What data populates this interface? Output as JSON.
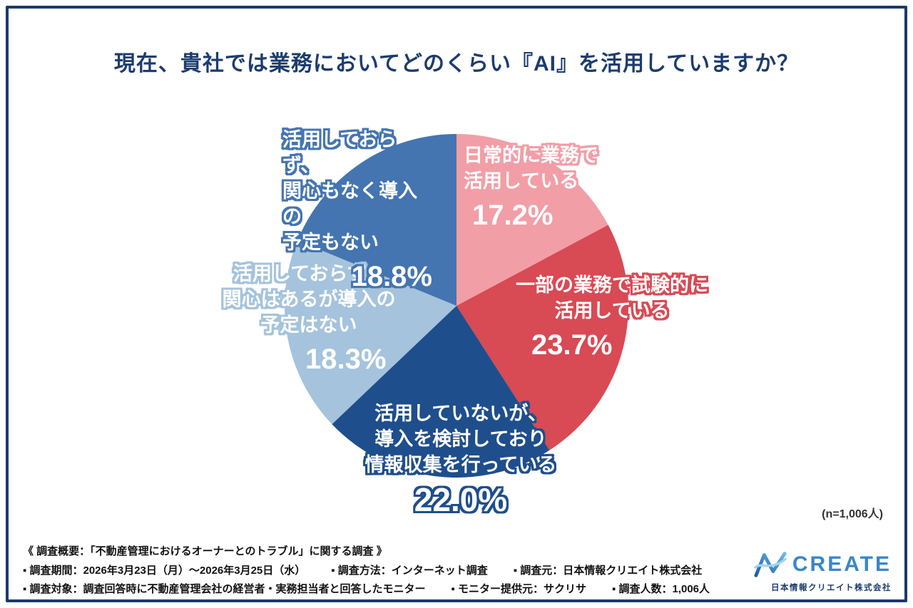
{
  "page": {
    "title": "現在、貴社では業務においてどのくらい『AI』を活用していますか？",
    "n_note": "(n=1,006人)"
  },
  "chart_data": {
    "type": "pie",
    "title": "現在、貴社では業務においてどのくらい『AI』を活用していますか？",
    "start_angle_deg": -90,
    "direction": "clockwise",
    "total_respondents": "1,006人",
    "slices": [
      {
        "name": "日常的に業務で活用している",
        "value": 17.2,
        "percent_label": "17.2%",
        "color": "#f29ea7",
        "label_lines": [
          "日常的に業務で",
          "活用している"
        ]
      },
      {
        "name": "一部の業務で試験的に活用している",
        "value": 23.7,
        "percent_label": "23.7%",
        "color": "#d84a54",
        "label_lines": [
          "一部の業務で試験的に",
          "活用している"
        ]
      },
      {
        "name": "活用していないが、導入を検討しており情報収集を行っている",
        "value": 22.0,
        "percent_label": "22.0%",
        "color": "#1f4e8c",
        "label_lines": [
          "活用していないが、",
          "導入を検討しており",
          "情報収集を行っている"
        ]
      },
      {
        "name": "活用しておらず、関心はあるが導入の予定はない",
        "value": 18.3,
        "percent_label": "18.3%",
        "color": "#a5c3dc",
        "label_lines": [
          "活用しておらず、",
          "関心はあるが導入の",
          "予定はない"
        ]
      },
      {
        "name": "活用しておらず、関心もなく導入の予定もない",
        "value": 18.8,
        "percent_label": "18.8%",
        "color": "#4475b0",
        "label_lines": [
          "活用しておらず、",
          "関心もなく導入の",
          "予定もない"
        ]
      }
    ]
  },
  "footer": {
    "summary": "《 調査概要：「不動産管理におけるオーナーとのトラブル」に関する調査 》",
    "line2": [
      "▪ 調査期間：2026年3月23日（月）〜2026年3月25日（水）",
      "▪ 調査方法：インターネット調査",
      "▪ 調査元：日本情報クリエイト株式会社"
    ],
    "line3": [
      "▪ 調査対象：調査回答時に不動産管理会社の経営者・実務担当者と回答したモニター",
      "▪ モニター提供元：サクリサ",
      "▪ 調査人数：1,006人"
    ]
  },
  "logo": {
    "brand": "CREATE",
    "company": "日本情報クリエイト株式会社",
    "brand_color": "#3a87c8"
  }
}
